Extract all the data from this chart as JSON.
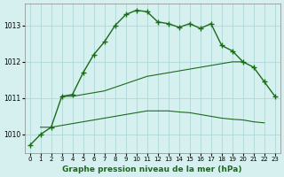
{
  "title": "Graphe pression niveau de la mer (hPa)",
  "xlabel": "Graphe pression niveau de la mer (hPa)",
  "line1_x": [
    0,
    1,
    2,
    3,
    4,
    5,
    6,
    7,
    8,
    9,
    10,
    11,
    12,
    13,
    14,
    15,
    16,
    17,
    18,
    19,
    20,
    21,
    22,
    23
  ],
  "line1_y": [
    1009.7,
    1010.0,
    1010.2,
    1011.05,
    1011.1,
    1011.7,
    1012.2,
    1012.55,
    1013.0,
    1013.3,
    1013.42,
    1013.38,
    1013.1,
    1013.05,
    1012.95,
    1013.05,
    1012.92,
    1013.05,
    1012.45,
    1012.3,
    1012.0,
    1011.85,
    1011.45,
    1011.05
  ],
  "line2_x": [
    3,
    4,
    5,
    6,
    7,
    8,
    9,
    10,
    11,
    12,
    13,
    14,
    15,
    16,
    17,
    18,
    19,
    20
  ],
  "line2_y": [
    1011.05,
    1011.05,
    1011.1,
    1011.15,
    1011.2,
    1011.3,
    1011.4,
    1011.5,
    1011.6,
    1011.65,
    1011.7,
    1011.75,
    1011.8,
    1011.85,
    1011.9,
    1011.95,
    1012.0,
    1012.0
  ],
  "line3_x": [
    1,
    2,
    3,
    4,
    5,
    6,
    7,
    8,
    9,
    10,
    11,
    12,
    13,
    14,
    15,
    16,
    17,
    18,
    19,
    20,
    21,
    22
  ],
  "line3_y": [
    1010.2,
    1010.2,
    1010.25,
    1010.3,
    1010.35,
    1010.4,
    1010.45,
    1010.5,
    1010.55,
    1010.6,
    1010.65,
    1010.65,
    1010.65,
    1010.62,
    1010.6,
    1010.55,
    1010.5,
    1010.45,
    1010.42,
    1010.4,
    1010.35,
    1010.32
  ],
  "line_color": "#1a6b1a",
  "bg_color": "#d6f0f0",
  "grid_color": "#b0d8d8",
  "ylim": [
    1009.5,
    1013.6
  ],
  "yticks": [
    1010,
    1011,
    1012,
    1013
  ],
  "xticks": [
    0,
    1,
    2,
    3,
    4,
    5,
    6,
    7,
    8,
    9,
    10,
    11,
    12,
    13,
    14,
    15,
    16,
    17,
    18,
    19,
    20,
    21,
    22,
    23
  ]
}
